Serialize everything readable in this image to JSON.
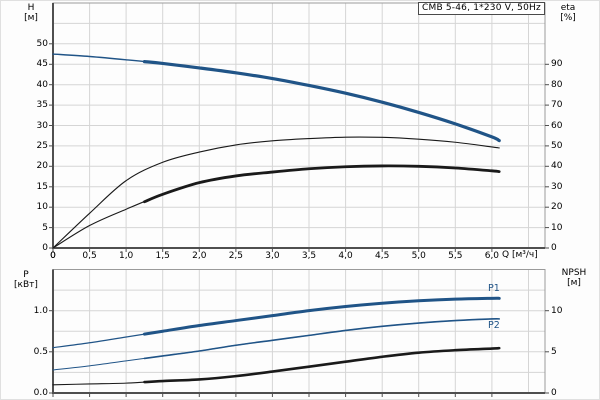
{
  "colors": {
    "blue": "#205487",
    "black": "#1a1a1a",
    "grid": "#d5d5d5",
    "frame": "#9a9a9a",
    "axis": "#4f4f4f",
    "text": "#000000",
    "background": "#ffffff"
  },
  "chart_data": [
    {
      "type": "line",
      "id": "head",
      "title": "CMB 5-46, 1*230 V, 50Hz",
      "x_axis": {
        "label": "Q [м³/ч]",
        "range": [
          0,
          6.726
        ],
        "grid_step": 0.5,
        "tick_values": [
          0,
          0.5,
          1,
          1.5,
          2,
          2.5,
          3,
          3.5,
          4,
          4.5,
          5,
          5.5,
          6
        ],
        "tick_labels": [
          "0",
          "0,5",
          "1,0",
          "1,5",
          "2,0",
          "2,5",
          "3,0",
          "3,5",
          "4,0",
          "4,5",
          "5,0",
          "5,5",
          "6,0"
        ]
      },
      "y_left": {
        "name": "H",
        "unit": "[м]",
        "range": [
          0,
          60
        ],
        "grid_step": 5,
        "tick_values": [
          0,
          5,
          10,
          15,
          20,
          25,
          30,
          35,
          40,
          45,
          50
        ],
        "tick_labels": [
          "0",
          "5",
          "10",
          "15",
          "20",
          "25",
          "30",
          "35",
          "40",
          "45",
          "50"
        ]
      },
      "y_right": {
        "name": "eta",
        "unit": "[%]",
        "range": [
          0,
          120
        ],
        "tick_values": [
          0,
          10,
          20,
          30,
          40,
          50,
          60,
          70,
          80,
          90
        ],
        "tick_labels": [
          "0",
          "10",
          "20",
          "30",
          "40",
          "50",
          "60",
          "70",
          "80",
          "90"
        ]
      },
      "series": [
        {
          "name": "H-curve",
          "axis": "left",
          "color": "blue",
          "bold_from": 1.25,
          "points": [
            [
              0,
              47.5
            ],
            [
              0.5,
              46.9
            ],
            [
              1,
              46.1
            ],
            [
              1.5,
              45.2
            ],
            [
              2,
              44.1
            ],
            [
              2.5,
              42.9
            ],
            [
              3,
              41.5
            ],
            [
              3.5,
              39.8
            ],
            [
              4,
              37.9
            ],
            [
              4.5,
              35.7
            ],
            [
              5,
              33.2
            ],
            [
              5.5,
              30.4
            ],
            [
              6,
              27.2
            ],
            [
              6.1,
              26.3
            ]
          ]
        },
        {
          "name": "eta-pump-curve",
          "axis": "right",
          "color": "black",
          "points": [
            [
              0,
              0
            ],
            [
              0.5,
              17
            ],
            [
              1,
              33
            ],
            [
              1.5,
              42
            ],
            [
              2,
              47
            ],
            [
              2.5,
              50.5
            ],
            [
              3,
              52.5
            ],
            [
              3.5,
              53.6
            ],
            [
              4,
              54.3
            ],
            [
              4.5,
              54.2
            ],
            [
              5,
              53.3
            ],
            [
              5.5,
              51.8
            ],
            [
              6,
              49.5
            ],
            [
              6.1,
              49
            ]
          ]
        },
        {
          "name": "eta-total-curve",
          "axis": "right",
          "color": "black",
          "bold_from": 1.25,
          "points": [
            [
              0,
              0
            ],
            [
              0.5,
              11
            ],
            [
              1,
              19
            ],
            [
              1.5,
              26.3
            ],
            [
              2,
              32
            ],
            [
              2.5,
              35.3
            ],
            [
              3,
              37.2
            ],
            [
              3.5,
              38.8
            ],
            [
              4,
              39.8
            ],
            [
              4.5,
              40.2
            ],
            [
              5,
              40
            ],
            [
              5.5,
              39.2
            ],
            [
              6,
              37.8
            ],
            [
              6.1,
              37.4
            ]
          ]
        }
      ]
    },
    {
      "type": "line",
      "id": "power",
      "x_axis": {
        "label": "",
        "range": [
          0,
          6.726
        ],
        "grid_step": 0.5,
        "tick_values": [
          0,
          0.5,
          1,
          1.5,
          2,
          2.5,
          3,
          3.5,
          4,
          4.5,
          5,
          5.5,
          6
        ],
        "tick_labels": []
      },
      "y_left": {
        "name": "P",
        "unit": "[кВт]",
        "range": [
          0,
          1.5
        ],
        "grid_step": 0.25,
        "tick_values": [
          1,
          0.5,
          0
        ],
        "tick_labels": [
          "1.0",
          "0.5",
          "0.0"
        ]
      },
      "y_right": {
        "name": "NPSH",
        "unit": "[м]",
        "range": [
          0,
          15
        ],
        "tick_values": [
          10,
          5,
          0
        ],
        "tick_labels": [
          "10",
          "5",
          "0"
        ]
      },
      "series": [
        {
          "name": "P1-curve",
          "label": "P1",
          "axis": "left",
          "color": "blue",
          "bold_from": 1.25,
          "points": [
            [
              0,
              0.55
            ],
            [
              0.5,
              0.61
            ],
            [
              1,
              0.68
            ],
            [
              1.5,
              0.75
            ],
            [
              2,
              0.82
            ],
            [
              2.5,
              0.88
            ],
            [
              3,
              0.94
            ],
            [
              3.5,
              1.0
            ],
            [
              4,
              1.05
            ],
            [
              4.5,
              1.09
            ],
            [
              5,
              1.12
            ],
            [
              5.5,
              1.14
            ],
            [
              6,
              1.15
            ],
            [
              6.1,
              1.15
            ]
          ]
        },
        {
          "name": "P2-curve",
          "label": "P2",
          "axis": "left",
          "color": "blue",
          "bold_from": 1.25,
          "points": [
            [
              0,
              0.28
            ],
            [
              0.5,
              0.33
            ],
            [
              1,
              0.39
            ],
            [
              1.5,
              0.45
            ],
            [
              2,
              0.51
            ],
            [
              2.5,
              0.58
            ],
            [
              3,
              0.64
            ],
            [
              3.5,
              0.7
            ],
            [
              4,
              0.76
            ],
            [
              4.5,
              0.81
            ],
            [
              5,
              0.85
            ],
            [
              5.5,
              0.88
            ],
            [
              6,
              0.9
            ],
            [
              6.1,
              0.9
            ]
          ]
        },
        {
          "name": "npsh-curve",
          "axis": "right",
          "color": "black",
          "bold_from": 1.25,
          "points": [
            [
              0,
              1.0
            ],
            [
              0.5,
              1.1
            ],
            [
              1,
              1.2
            ],
            [
              1.5,
              1.45
            ],
            [
              2,
              1.65
            ],
            [
              2.5,
              2.05
            ],
            [
              3,
              2.6
            ],
            [
              3.5,
              3.2
            ],
            [
              4,
              3.8
            ],
            [
              4.5,
              4.4
            ],
            [
              5,
              4.9
            ],
            [
              5.5,
              5.2
            ],
            [
              6,
              5.4
            ],
            [
              6.1,
              5.45
            ]
          ]
        }
      ]
    }
  ]
}
